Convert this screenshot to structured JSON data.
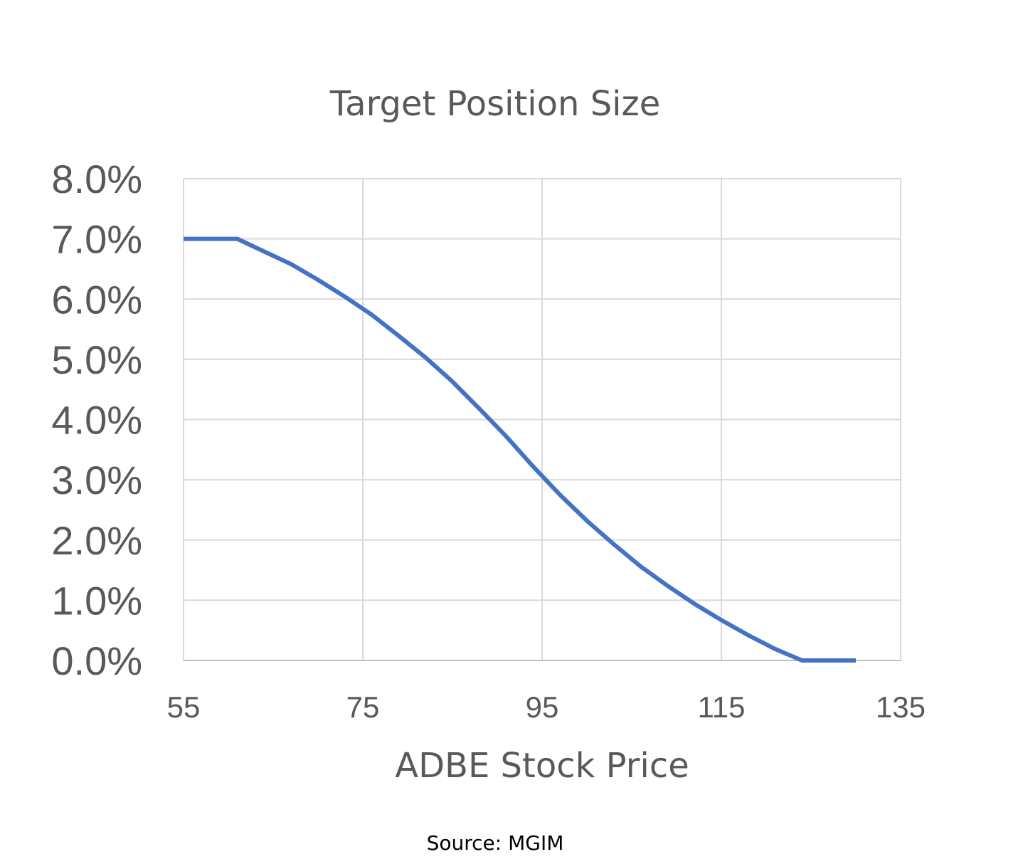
{
  "chart_data": {
    "type": "line",
    "title": "Target Position Size",
    "xlabel": "ADBE Stock Price",
    "ylabel": "",
    "xlim": [
      55,
      135
    ],
    "ylim": [
      0,
      0.08
    ],
    "x_ticks": [
      55,
      75,
      95,
      115,
      135
    ],
    "x_tick_labels": [
      "55",
      "75",
      "95",
      "115",
      "135"
    ],
    "y_ticks": [
      0,
      0.01,
      0.02,
      0.03,
      0.04,
      0.05,
      0.06,
      0.07,
      0.08
    ],
    "y_tick_labels": [
      "0.0%",
      "1.0%",
      "2.0%",
      "3.0%",
      "4.0%",
      "5.0%",
      "6.0%",
      "7.0%",
      "8.0%"
    ],
    "grid": true,
    "legend": "none",
    "series": [
      {
        "color": "#4472C4",
        "x": [
          55,
          61,
          67,
          70,
          73,
          76,
          79,
          82,
          85,
          88,
          91,
          94,
          97,
          100,
          103,
          106,
          109,
          112,
          115,
          118,
          121,
          124,
          130
        ],
        "y": [
          0.07,
          0.07,
          0.0658,
          0.0632,
          0.0604,
          0.0574,
          0.0539,
          0.0503,
          0.0463,
          0.0418,
          0.0372,
          0.0322,
          0.0275,
          0.0232,
          0.0193,
          0.0156,
          0.0124,
          0.0094,
          0.0067,
          0.0042,
          0.0019,
          0.0,
          0.0
        ]
      }
    ]
  },
  "source_note": "Source: MGIM"
}
